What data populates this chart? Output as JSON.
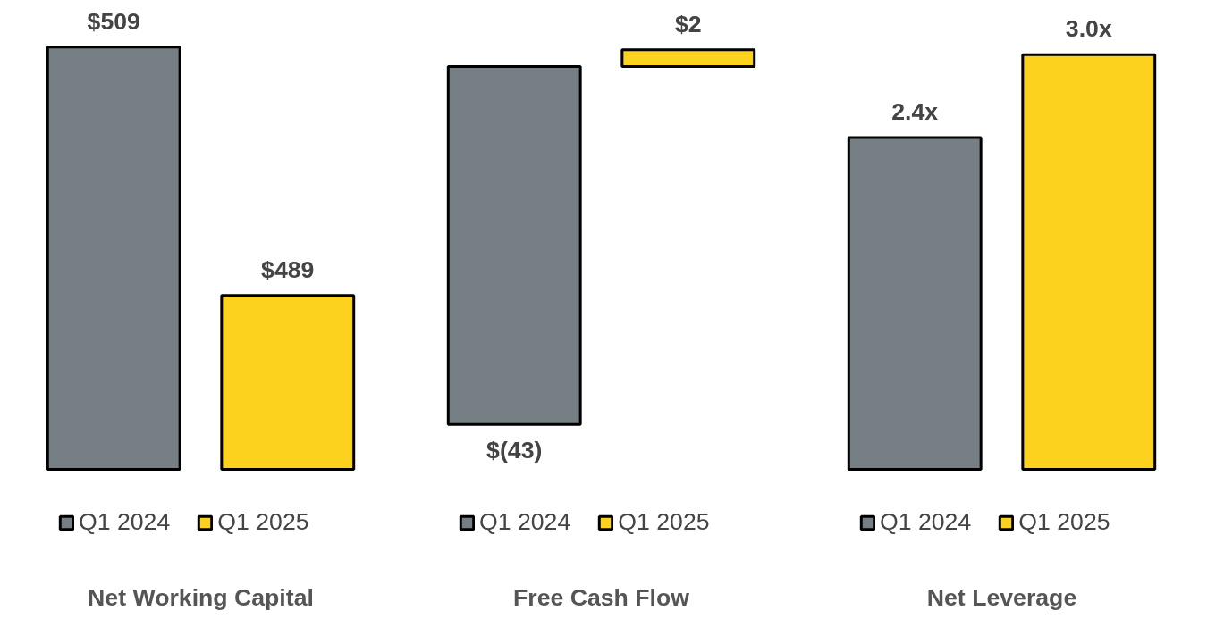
{
  "chart_data": [
    {
      "type": "bar",
      "title": "Net Working Capital",
      "categories": [
        null
      ],
      "ylim": [
        475,
        509
      ],
      "tick_labels": false,
      "grid": false,
      "legend": "bottom",
      "series": [
        {
          "name": "Q1 2024",
          "color": "#757f84",
          "values": [
            509
          ],
          "value_labels": [
            "$509"
          ]
        },
        {
          "name": "Q1 2025",
          "color": "#fcd21f",
          "values": [
            489
          ],
          "value_labels": [
            "$489"
          ]
        }
      ]
    },
    {
      "type": "bar",
      "title": "Free Cash Flow",
      "categories": [
        null
      ],
      "tick_labels": false,
      "grid": false,
      "legend": "bottom",
      "series": [
        {
          "name": "Q1 2024",
          "color": "#757f84",
          "values": [
            -43
          ],
          "value_labels": [
            "$(43)"
          ]
        },
        {
          "name": "Q1 2025",
          "color": "#fcd21f",
          "values": [
            2
          ],
          "value_labels": [
            "$2"
          ]
        }
      ]
    },
    {
      "type": "bar",
      "title": "Net Leverage",
      "categories": [
        null
      ],
      "tick_labels": false,
      "grid": false,
      "legend": "bottom",
      "series": [
        {
          "name": "Q1 2024",
          "color": "#757f84",
          "values": [
            2.4
          ],
          "value_labels": [
            "2.4x"
          ]
        },
        {
          "name": "Q1 2025",
          "color": "#fcd21f",
          "values": [
            3.0
          ],
          "value_labels": [
            "3.0x"
          ]
        }
      ]
    }
  ]
}
